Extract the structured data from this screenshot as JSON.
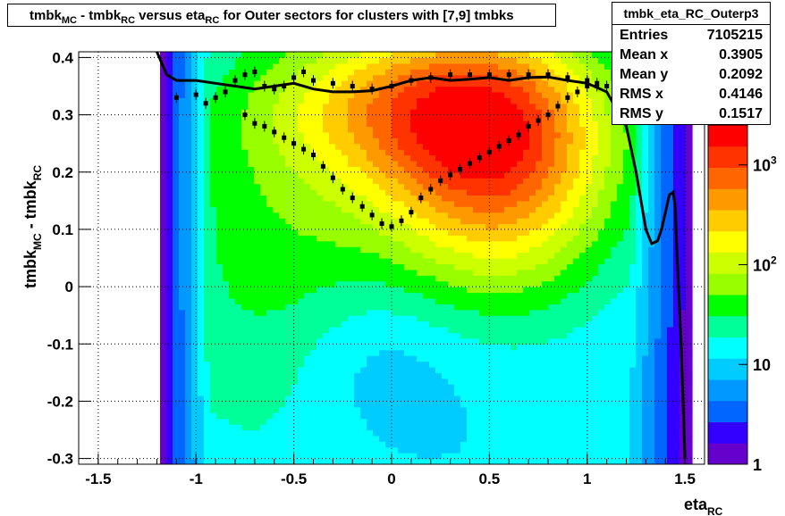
{
  "chart_data": {
    "type": "heatmap",
    "title": "tmbk_MC - tmbk_RC versus eta_RC for Outer sectors for clusters with [7,9] tmbks",
    "xlabel": "eta_RC",
    "ylabel": "tmbk_MC - tmbk_RC",
    "xlim": [
      -1.6,
      1.6
    ],
    "ylim": [
      -0.31,
      0.41
    ],
    "x_ticks": [
      "-1.5",
      "-1",
      "-0.5",
      "0",
      "0.5",
      "1",
      "1.5"
    ],
    "y_ticks": [
      "-0.3",
      "-0.2",
      "-0.1",
      "0",
      "0.1",
      "0.2",
      "0.3",
      "0.4"
    ],
    "z_scale": "log",
    "z_ticks": [
      "1",
      "10",
      "10^2",
      "10^3"
    ],
    "grid": true,
    "palette": [
      "#6600cc",
      "#3300ff",
      "#0066ff",
      "#0099ff",
      "#00ccff",
      "#00ffff",
      "#00ff99",
      "#00ff00",
      "#99ff00",
      "#ccff00",
      "#ffff00",
      "#ffcc00",
      "#ff9900",
      "#ff6600",
      "#ff3300",
      "#ff0000"
    ],
    "stats": {
      "name": "tmbk_eta_RC_Outerp3",
      "entries": {
        "label": "Entries",
        "value": "7105215"
      },
      "mean_x": {
        "label": "Mean x",
        "value": "0.3905"
      },
      "mean_y": {
        "label": "Mean y",
        "value": "0.2092"
      },
      "rms_x": {
        "label": "RMS x",
        "value": "0.4146"
      },
      "rms_y": {
        "label": "RMS y",
        "value": "0.1517"
      }
    },
    "series": [
      {
        "type": "line",
        "points": [
          [
            -1.2,
            0.41
          ],
          [
            -1.15,
            0.37
          ],
          [
            -1.1,
            0.36
          ],
          [
            -1.0,
            0.36
          ],
          [
            -0.9,
            0.355
          ],
          [
            -0.8,
            0.35
          ],
          [
            -0.7,
            0.345
          ],
          [
            -0.6,
            0.35
          ],
          [
            -0.5,
            0.355
          ],
          [
            -0.4,
            0.345
          ],
          [
            -0.3,
            0.34
          ],
          [
            -0.2,
            0.34
          ],
          [
            -0.1,
            0.342
          ],
          [
            0.0,
            0.35
          ],
          [
            0.1,
            0.36
          ],
          [
            0.2,
            0.365
          ],
          [
            0.3,
            0.36
          ],
          [
            0.4,
            0.362
          ],
          [
            0.5,
            0.365
          ],
          [
            0.6,
            0.36
          ],
          [
            0.7,
            0.365
          ],
          [
            0.8,
            0.366
          ],
          [
            0.9,
            0.36
          ],
          [
            1.0,
            0.355
          ],
          [
            1.1,
            0.34
          ],
          [
            1.2,
            0.28
          ],
          [
            1.25,
            0.2
          ],
          [
            1.3,
            0.1
          ],
          [
            1.33,
            0.075
          ],
          [
            1.36,
            0.08
          ],
          [
            1.38,
            0.1
          ],
          [
            1.4,
            0.13
          ],
          [
            1.42,
            0.16
          ],
          [
            1.44,
            0.165
          ],
          [
            1.45,
            0.14
          ],
          [
            1.46,
            0.05
          ],
          [
            1.48,
            -0.1
          ],
          [
            1.5,
            -0.3
          ]
        ]
      },
      {
        "type": "scatter",
        "points": [
          [
            -1.1,
            0.33
          ],
          [
            -1.0,
            0.335
          ],
          [
            -0.95,
            0.32
          ],
          [
            -0.9,
            0.33
          ],
          [
            -0.85,
            0.34
          ],
          [
            -0.8,
            0.36
          ],
          [
            -0.75,
            0.37
          ],
          [
            -0.7,
            0.375
          ],
          [
            -0.65,
            0.35
          ],
          [
            -0.6,
            0.345
          ],
          [
            -0.55,
            0.35
          ],
          [
            -0.5,
            0.365
          ],
          [
            -0.45,
            0.375
          ],
          [
            -0.4,
            0.36
          ],
          [
            -0.3,
            0.355
          ],
          [
            -0.2,
            0.35
          ],
          [
            -0.1,
            0.345
          ],
          [
            0.0,
            0.35
          ],
          [
            0.1,
            0.36
          ],
          [
            0.2,
            0.365
          ],
          [
            0.3,
            0.37
          ],
          [
            0.4,
            0.37
          ],
          [
            0.5,
            0.37
          ],
          [
            0.6,
            0.37
          ],
          [
            0.7,
            0.37
          ],
          [
            0.8,
            0.37
          ],
          [
            0.9,
            0.365
          ],
          [
            1.0,
            0.36
          ],
          [
            1.05,
            0.35
          ],
          [
            1.1,
            0.35
          ],
          [
            1.15,
            0.34
          ]
        ]
      },
      {
        "type": "scatter",
        "points": [
          [
            -0.75,
            0.3
          ],
          [
            -0.7,
            0.285
          ],
          [
            -0.65,
            0.28
          ],
          [
            -0.6,
            0.27
          ],
          [
            -0.55,
            0.26
          ],
          [
            -0.5,
            0.25
          ],
          [
            -0.45,
            0.24
          ],
          [
            -0.4,
            0.23
          ],
          [
            -0.35,
            0.21
          ],
          [
            -0.3,
            0.19
          ],
          [
            -0.25,
            0.17
          ],
          [
            -0.2,
            0.155
          ],
          [
            -0.15,
            0.14
          ],
          [
            -0.1,
            0.125
          ],
          [
            -0.05,
            0.11
          ],
          [
            0.0,
            0.105
          ],
          [
            0.05,
            0.115
          ],
          [
            0.1,
            0.13
          ],
          [
            0.15,
            0.155
          ],
          [
            0.2,
            0.17
          ],
          [
            0.25,
            0.185
          ],
          [
            0.3,
            0.195
          ],
          [
            0.35,
            0.205
          ],
          [
            0.4,
            0.215
          ],
          [
            0.45,
            0.225
          ],
          [
            0.5,
            0.235
          ],
          [
            0.55,
            0.245
          ],
          [
            0.6,
            0.255
          ],
          [
            0.65,
            0.265
          ],
          [
            0.7,
            0.28
          ],
          [
            0.75,
            0.29
          ],
          [
            0.8,
            0.3
          ],
          [
            0.85,
            0.315
          ],
          [
            0.9,
            0.33
          ],
          [
            0.95,
            0.34
          ],
          [
            1.0,
            0.35
          ],
          [
            1.05,
            0.355
          ]
        ]
      }
    ]
  }
}
